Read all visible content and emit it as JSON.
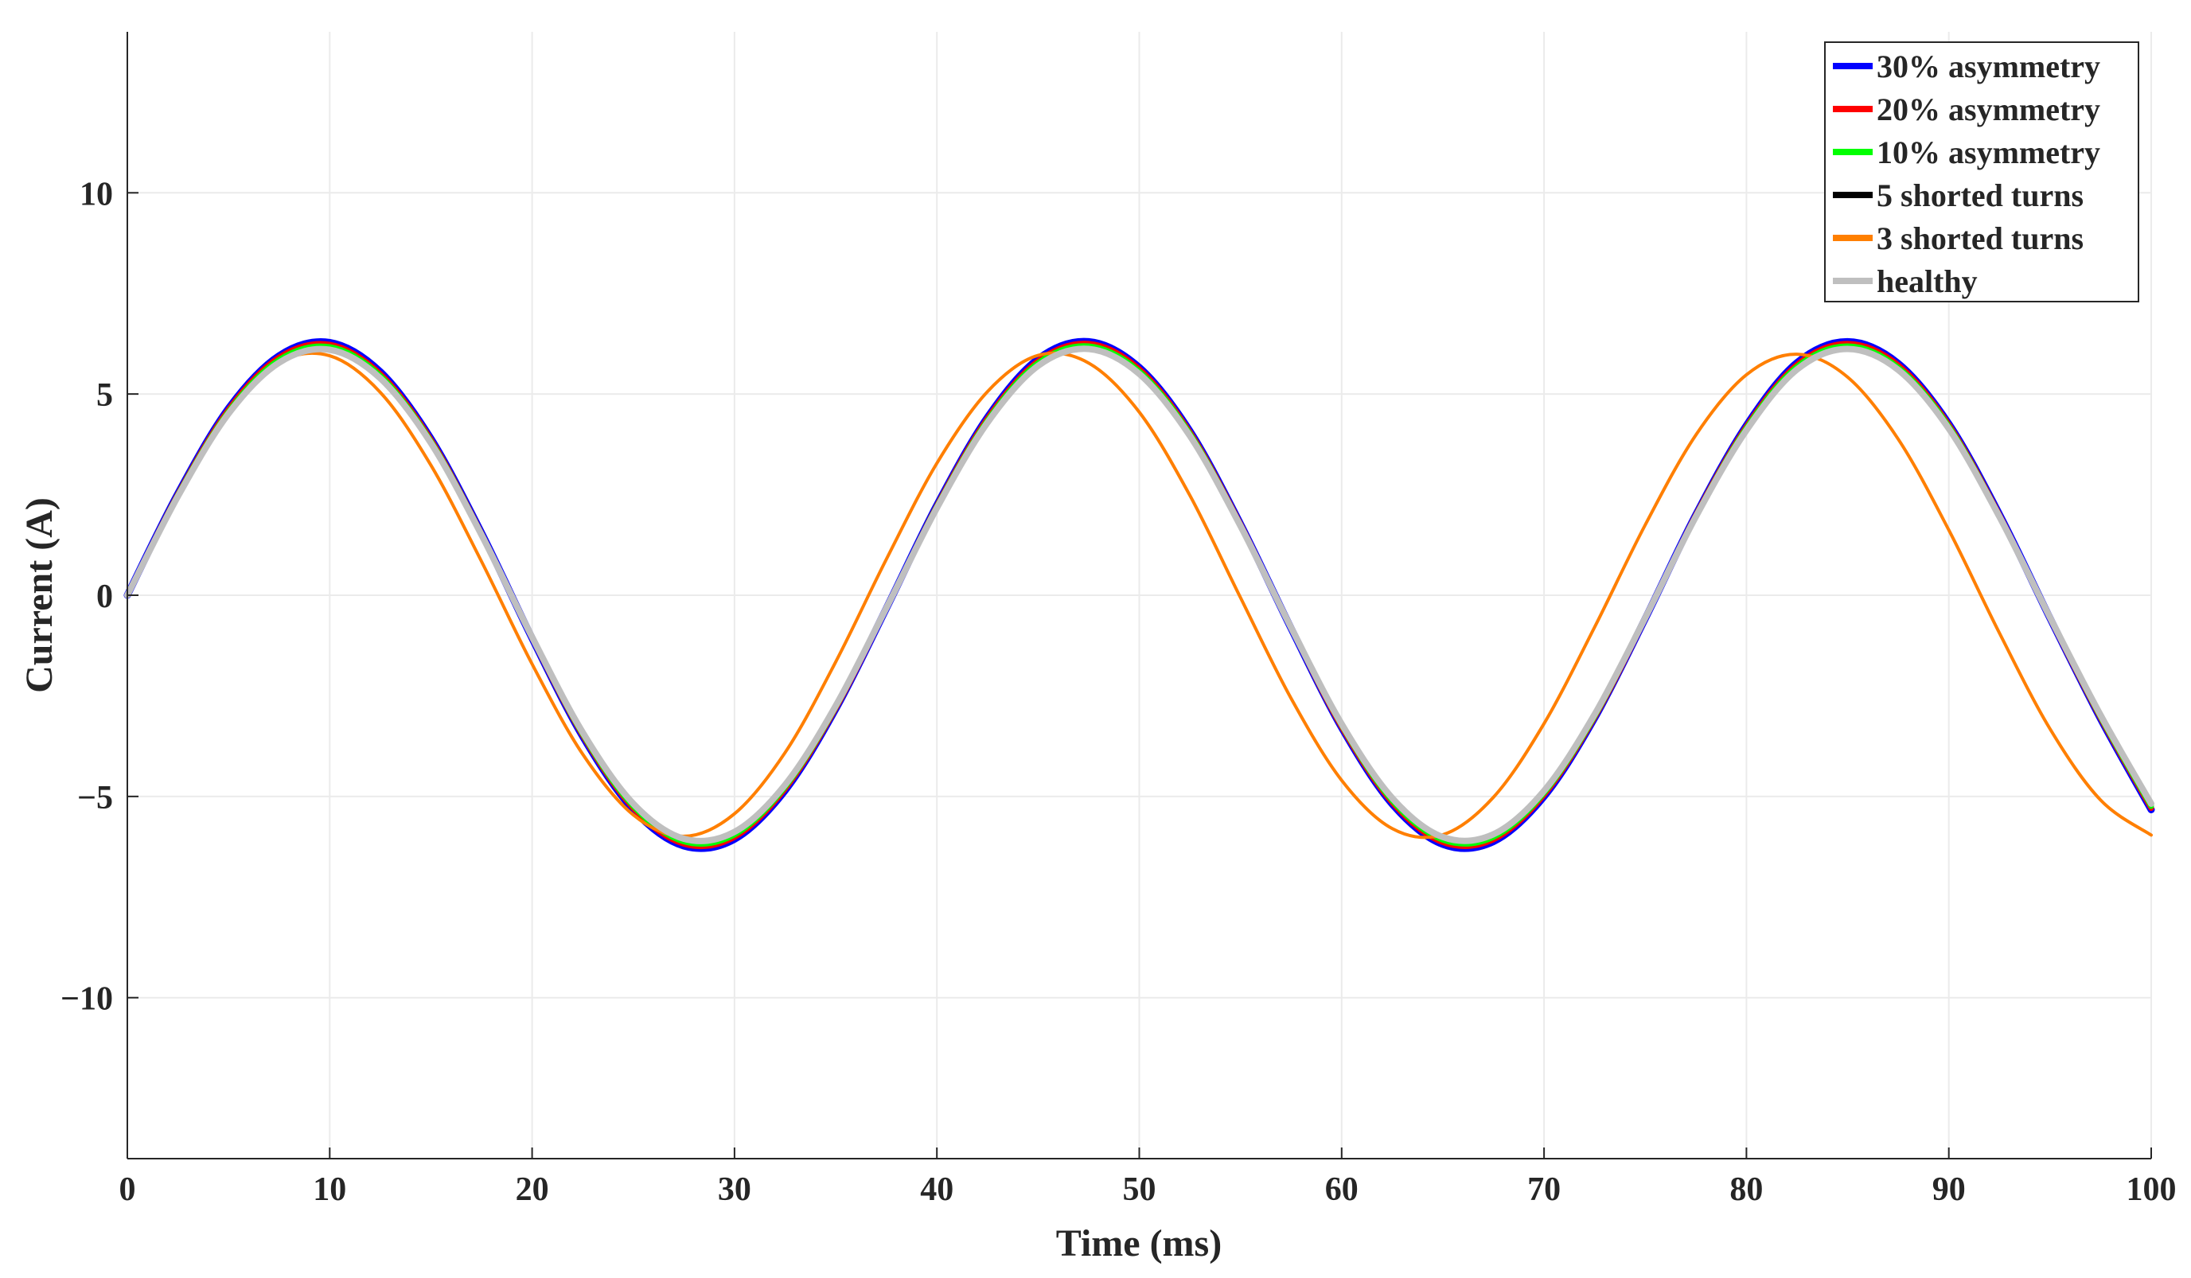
{
  "chart_data": {
    "type": "line",
    "title": "",
    "xlabel": "Time (ms)",
    "ylabel": "Current (A)",
    "xlim": [
      0,
      100
    ],
    "ylim": [
      -14,
      14
    ],
    "xticks": [
      0,
      10,
      20,
      30,
      40,
      50,
      60,
      70,
      80,
      90,
      100
    ],
    "xtick_labels": [
      "0",
      "10",
      "20",
      "30",
      "40",
      "50",
      "60",
      "70",
      "80",
      "90",
      "100"
    ],
    "yticks": [
      -10,
      -5,
      0,
      5,
      10
    ],
    "ytick_labels": [
      "−10",
      "−5",
      "0",
      "5",
      "10"
    ],
    "grid": true,
    "legend_position": "top-right",
    "x": [
      0,
      2.5,
      5,
      7.5,
      10,
      12.5,
      15,
      17.5,
      20,
      22.5,
      25,
      27.5,
      30,
      32.5,
      35,
      37.5,
      40,
      42.5,
      45,
      47.5,
      50,
      52.5,
      55,
      57.5,
      60,
      62.5,
      65,
      67.5,
      70,
      72.5,
      75,
      77.5,
      80,
      82.5,
      85,
      87.5,
      90,
      92.5,
      95,
      97.5,
      100
    ],
    "series": [
      {
        "name": "30% asymmetry",
        "color": "#0000ff",
        "values": [
          0,
          2.53,
          4.64,
          5.95,
          6.28,
          5.55,
          3.89,
          1.55,
          -1.07,
          -3.51,
          -5.33,
          -6.23,
          -6.06,
          -4.85,
          -2.83,
          -0.33,
          2.24,
          4.42,
          5.87,
          6.3,
          5.66,
          4.08,
          1.77,
          -0.82,
          -3.29,
          -5.19,
          -6.19,
          -6.12,
          -5.0,
          -3.05,
          -0.58,
          2.0,
          4.22,
          5.78,
          6.3,
          5.76,
          4.26,
          2.01,
          -0.57,
          -3.07,
          -5.33
        ]
      },
      {
        "name": "20% asymmetry",
        "color": "#ff0000",
        "values": [
          0,
          2.51,
          4.61,
          5.91,
          6.23,
          5.5,
          3.86,
          1.53,
          -1.06,
          -3.48,
          -5.29,
          -6.18,
          -6.01,
          -4.81,
          -2.81,
          -0.33,
          2.22,
          4.39,
          5.82,
          6.25,
          5.62,
          4.05,
          1.76,
          -0.81,
          -3.27,
          -5.15,
          -6.14,
          -6.07,
          -4.96,
          -3.03,
          -0.58,
          1.99,
          4.19,
          5.73,
          6.25,
          5.72,
          4.23,
          1.99,
          -0.57,
          -3.05,
          -5.29
        ]
      },
      {
        "name": "10% asymmetry",
        "color": "#00ff00",
        "values": [
          0,
          2.49,
          4.56,
          5.85,
          6.17,
          5.45,
          3.82,
          1.52,
          -1.05,
          -3.45,
          -5.24,
          -6.12,
          -5.95,
          -4.76,
          -2.78,
          -0.32,
          2.2,
          4.34,
          5.77,
          6.19,
          5.56,
          4.01,
          1.74,
          -0.81,
          -3.23,
          -5.1,
          -6.08,
          -6.01,
          -4.91,
          -3.0,
          -0.57,
          1.97,
          4.15,
          5.68,
          6.19,
          5.66,
          4.19,
          1.97,
          -0.56,
          -3.02,
          -5.24
        ]
      },
      {
        "name": "5 shorted turns",
        "color": "#000000",
        "values": [
          0,
          2.47,
          4.52,
          5.8,
          6.12,
          5.4,
          3.79,
          1.51,
          -1.04,
          -3.42,
          -5.19,
          -6.07,
          -5.9,
          -4.72,
          -2.76,
          -0.32,
          2.18,
          4.3,
          5.72,
          6.14,
          5.52,
          3.97,
          1.73,
          -0.8,
          -3.21,
          -5.06,
          -6.03,
          -5.96,
          -4.87,
          -2.97,
          -0.57,
          1.95,
          4.11,
          5.63,
          6.14,
          5.62,
          4.15,
          1.96,
          -0.56,
          -2.99,
          -5.19
        ]
      },
      {
        "name": "3 shorted turns",
        "color": "#ff7f00",
        "values": [
          0,
          2.53,
          4.58,
          5.79,
          5.95,
          5.04,
          3.23,
          0.84,
          -1.71,
          -3.95,
          -5.46,
          -5.99,
          -5.43,
          -3.91,
          -1.66,
          0.89,
          3.28,
          5.06,
          5.96,
          5.77,
          4.55,
          2.48,
          -0.06,
          -2.56,
          -4.6,
          -5.8,
          -5.95,
          -5.02,
          -3.19,
          -0.79,
          1.75,
          3.98,
          5.48,
          5.99,
          5.42,
          3.88,
          1.62,
          -0.94,
          -3.32,
          -5.09,
          -5.96
        ]
      },
      {
        "name": "healthy",
        "color": "#bfbfbf",
        "values": [
          0,
          2.46,
          4.51,
          5.78,
          6.1,
          5.39,
          3.78,
          1.5,
          -1.04,
          -3.41,
          -5.18,
          -6.05,
          -5.88,
          -4.71,
          -2.75,
          -0.32,
          2.17,
          4.29,
          5.7,
          6.12,
          5.5,
          3.96,
          1.72,
          -0.8,
          -3.2,
          -5.04,
          -6.01,
          -5.94,
          -4.86,
          -2.96,
          -0.56,
          1.95,
          4.1,
          5.61,
          6.12,
          5.6,
          4.14,
          1.95,
          -0.55,
          -2.98,
          -5.18
        ]
      }
    ]
  }
}
